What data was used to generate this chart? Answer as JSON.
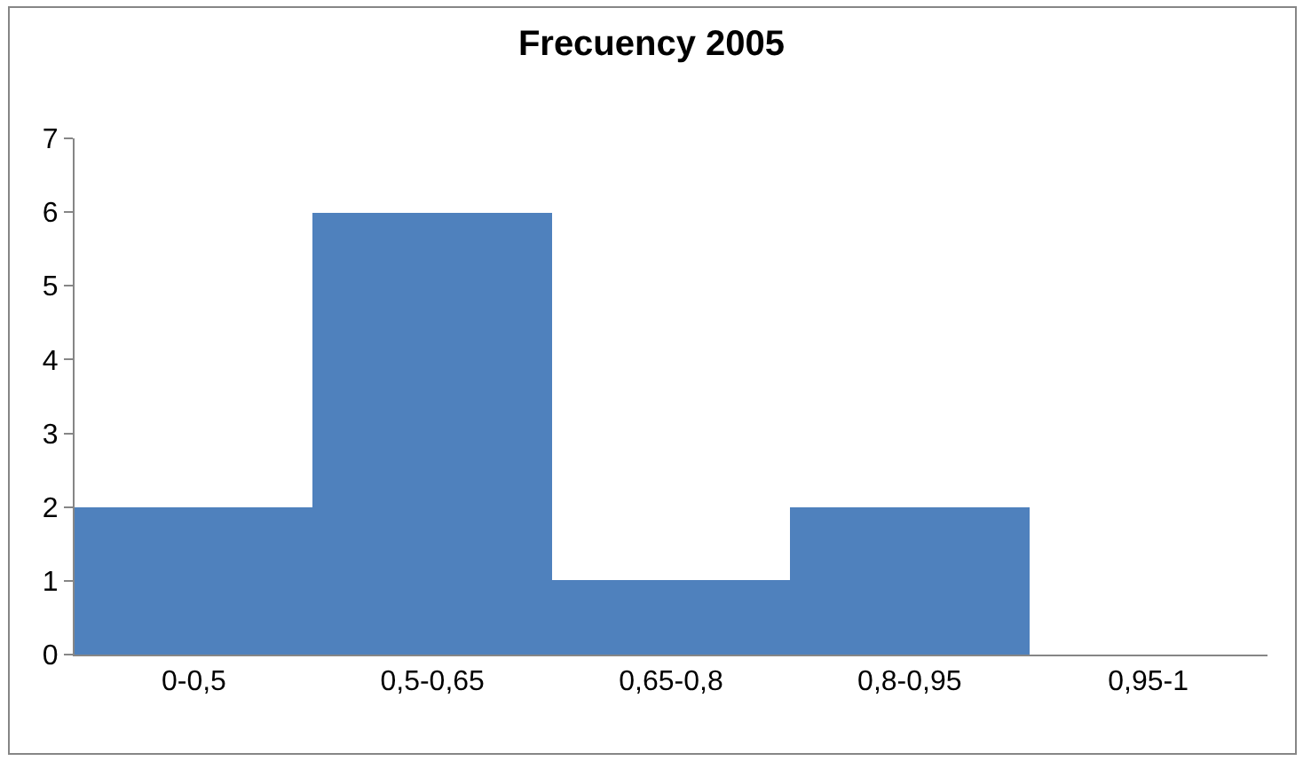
{
  "chart_data": {
    "type": "bar",
    "title": "Frecuency 2005",
    "categories": [
      "0-0,5",
      "0,5-0,65",
      "0,65-0,8",
      "0,8-0,95",
      "0,95-1"
    ],
    "values": [
      2,
      6,
      1,
      2,
      0
    ],
    "color": "#4f81bd",
    "ylim": [
      0,
      7
    ],
    "yticks": [
      0,
      1,
      2,
      3,
      4,
      5,
      6,
      7
    ]
  }
}
